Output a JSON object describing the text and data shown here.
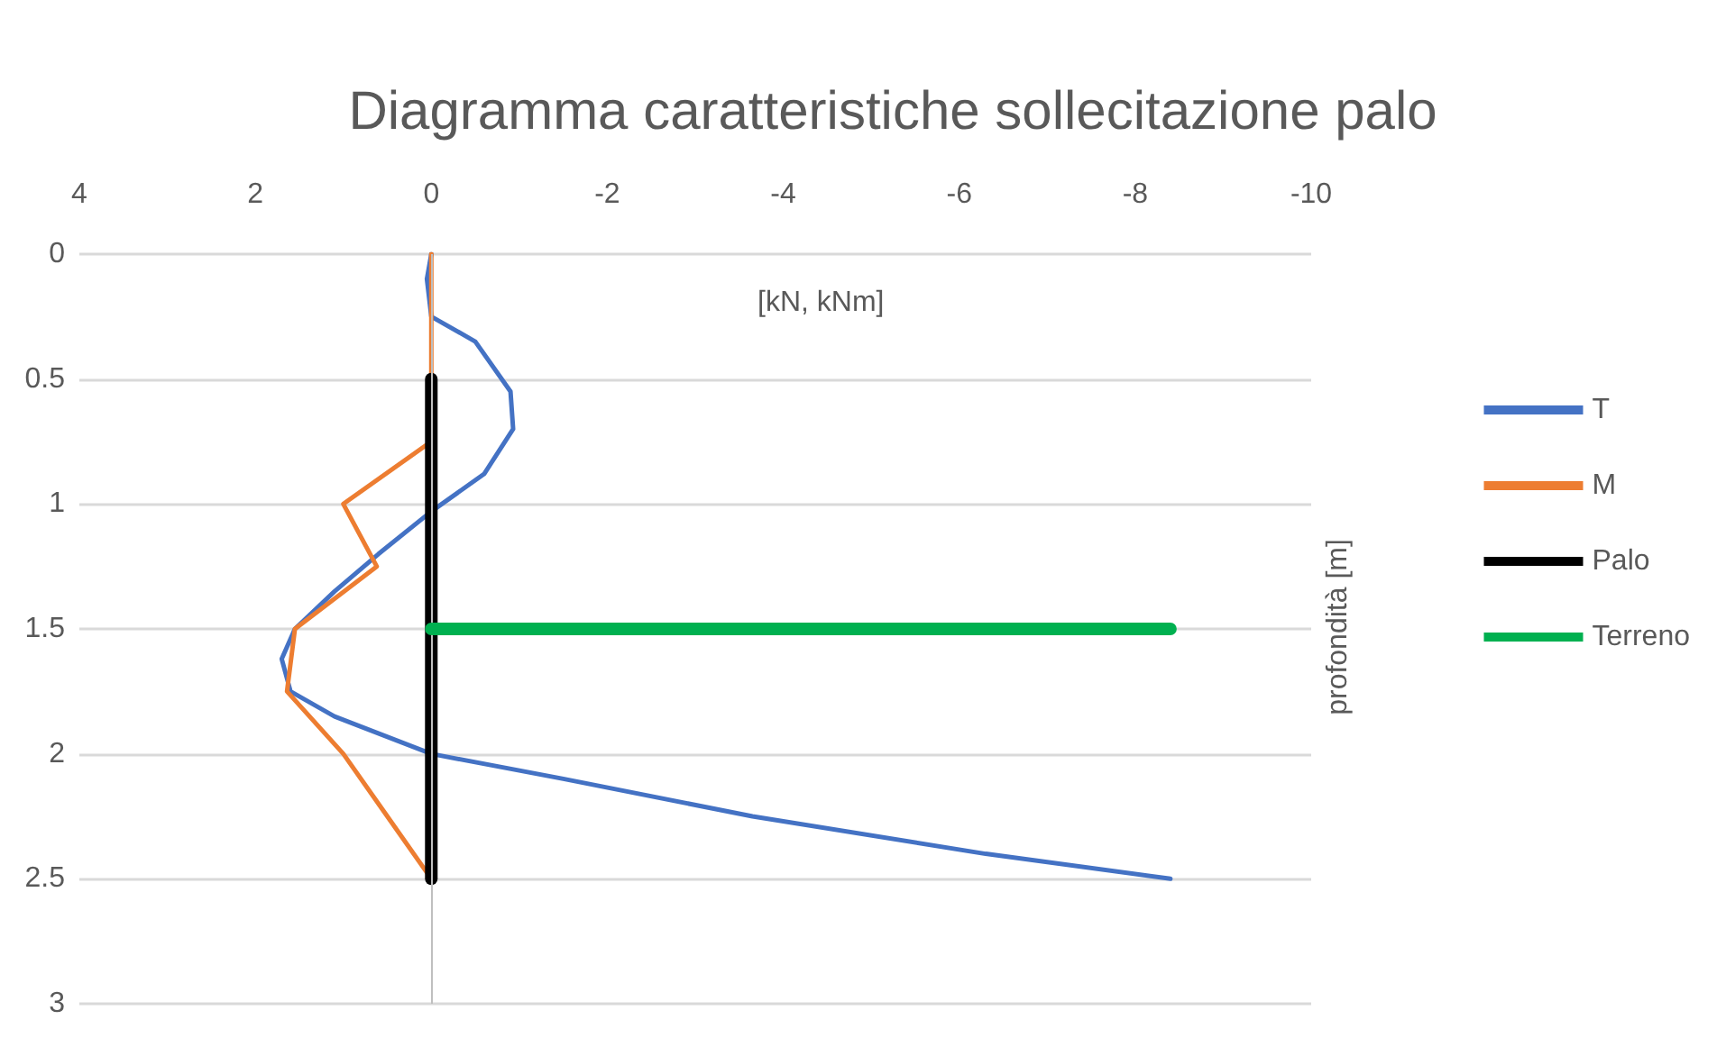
{
  "chart_data": {
    "type": "line",
    "title": "Diagramma caratteristiche sollecitazione palo",
    "xlabel": "[kN, kNm]",
    "ylabel": "profondità [m]",
    "series": [
      {
        "name": "T",
        "color": "#4472c4",
        "x": [
          0,
          0.05,
          0,
          -0.5,
          -0.9,
          -0.93,
          -0.6,
          0,
          0.6,
          1.1,
          1.55,
          1.7,
          1.6,
          1.1,
          0,
          -1.5,
          -3.65,
          -6.3,
          -8.4
        ],
        "values": [
          0,
          0.1,
          0.25,
          0.35,
          0.55,
          0.7,
          0.88,
          1.03,
          1.2,
          1.35,
          1.5,
          1.62,
          1.75,
          1.85,
          2,
          2.1,
          2.25,
          2.4,
          2.5
        ]
      },
      {
        "name": "M",
        "color": "#ed7d31",
        "x": [
          0,
          0,
          0,
          0,
          1.0,
          0.62,
          1.55,
          1.64,
          1.0,
          0.5,
          0
        ],
        "values": [
          0,
          0.25,
          0.5,
          0.75,
          1,
          1.25,
          1.5,
          1.75,
          2,
          2.25,
          2.5
        ]
      },
      {
        "name": "Palo",
        "color": "#000000",
        "x": [
          0,
          0
        ],
        "values": [
          0.5,
          2.5
        ]
      },
      {
        "name": "Terreno",
        "color": "#00b050",
        "x": [
          0,
          -8.4
        ],
        "values": [
          1.5,
          1.5
        ]
      }
    ],
    "xlim": [
      4,
      -10
    ],
    "xticks": [
      4,
      2,
      0,
      -2,
      -4,
      -6,
      -8,
      -10
    ],
    "ylim": [
      3,
      0
    ],
    "yticks": [
      0,
      0.5,
      1,
      1.5,
      2,
      2.5,
      3
    ],
    "grid": "y",
    "legend": "right",
    "marker": "none",
    "line_style": "solid"
  }
}
